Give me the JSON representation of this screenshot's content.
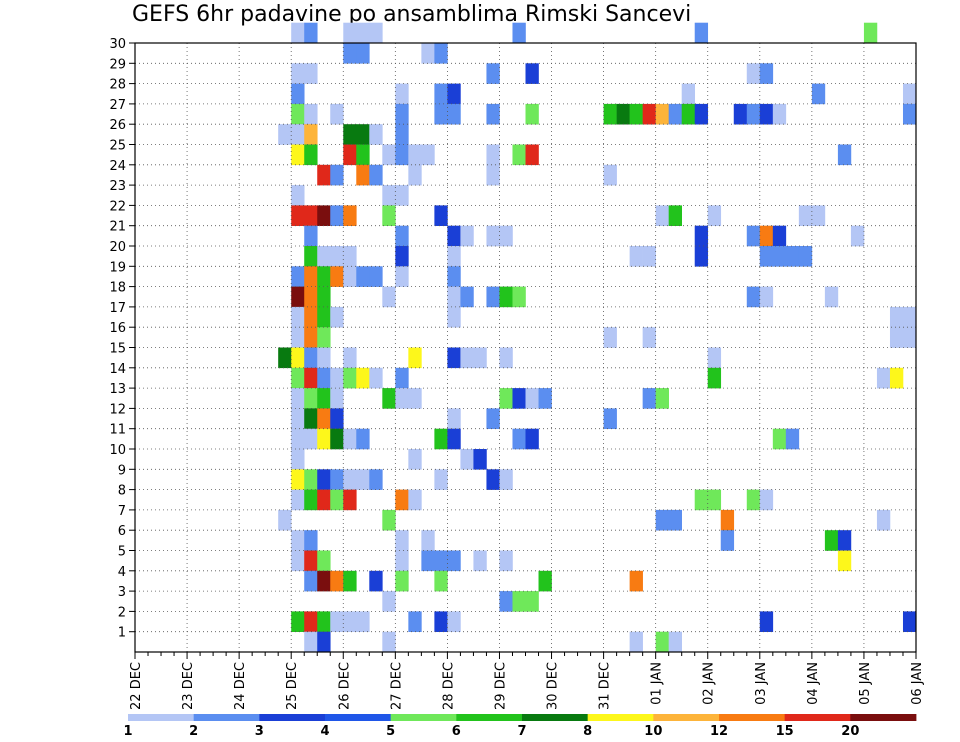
{
  "title": "GEFS 6hr padavine po ansamblima Rimski Sancevi",
  "chart_data": {
    "type": "heatmap",
    "title": "GEFS 6hr padavine po ansamblima Rimski Sancevi",
    "x_unit": "6hr steps from 22 DEC 00Z",
    "x_tick_labels": [
      "22 DEC",
      "23 DEC",
      "24 DEC",
      "25 DEC",
      "26 DEC",
      "27 DEC",
      "28 DEC",
      "29 DEC",
      "30 DEC",
      "31 DEC",
      "01 JAN",
      "02 JAN",
      "03 JAN",
      "04 JAN",
      "05 JAN",
      "06 JAN"
    ],
    "y_tick_labels": [
      "1",
      "2",
      "3",
      "4",
      "5",
      "6",
      "7",
      "8",
      "9",
      "10",
      "11",
      "12",
      "13",
      "14",
      "15",
      "16",
      "17",
      "18",
      "19",
      "20",
      "21",
      "22",
      "23",
      "24",
      "25",
      "26",
      "27",
      "28",
      "29",
      "30"
    ],
    "xlim": [
      0,
      60
    ],
    "ylim": [
      0,
      30
    ],
    "grid": true,
    "colorbar": {
      "levels": [
        "1",
        "2",
        "3",
        "4",
        "5",
        "6",
        "7",
        "8",
        "10",
        "12",
        "15",
        "20"
      ],
      "colors": [
        "#b4c6f5",
        "#5b8ef0",
        "#1a3fd6",
        "#1f56e8",
        "#6fe85a",
        "#22c31c",
        "#087a10",
        "#fdf71b",
        "#fdb43a",
        "#f87b12",
        "#e0281a",
        "#7a0e0e"
      ],
      "placement": "bottom"
    },
    "cells": [
      [
        12,
        30,
        1
      ],
      [
        13,
        30,
        2
      ],
      [
        16,
        30,
        1
      ],
      [
        17,
        30,
        1
      ],
      [
        18,
        30,
        1
      ],
      [
        29,
        30,
        2
      ],
      [
        43,
        30,
        2
      ],
      [
        56,
        30,
        5
      ],
      [
        16,
        29,
        2
      ],
      [
        17,
        29,
        2
      ],
      [
        22,
        29,
        1
      ],
      [
        23,
        29,
        2
      ],
      [
        12,
        28,
        1
      ],
      [
        13,
        28,
        1
      ],
      [
        27,
        28,
        2
      ],
      [
        30,
        28,
        3
      ],
      [
        47,
        28,
        1
      ],
      [
        48,
        28,
        2
      ],
      [
        12,
        27,
        2
      ],
      [
        20,
        27,
        1
      ],
      [
        23,
        27,
        2
      ],
      [
        24,
        27,
        3
      ],
      [
        42,
        27,
        1
      ],
      [
        52,
        27,
        2
      ],
      [
        59,
        27,
        1
      ],
      [
        12,
        26,
        5
      ],
      [
        13,
        26,
        1
      ],
      [
        15,
        26,
        1
      ],
      [
        20,
        26,
        2
      ],
      [
        23,
        26,
        2
      ],
      [
        24,
        26,
        2
      ],
      [
        27,
        26,
        2
      ],
      [
        30,
        26,
        5
      ],
      [
        36,
        26,
        6
      ],
      [
        37,
        26,
        7
      ],
      [
        38,
        26,
        6
      ],
      [
        39,
        26,
        11
      ],
      [
        40,
        26,
        9
      ],
      [
        41,
        26,
        2
      ],
      [
        42,
        26,
        6
      ],
      [
        43,
        26,
        3
      ],
      [
        46,
        26,
        3
      ],
      [
        47,
        26,
        2
      ],
      [
        48,
        26,
        3
      ],
      [
        49,
        26,
        1
      ],
      [
        59,
        26,
        2
      ],
      [
        11,
        25,
        1
      ],
      [
        12,
        25,
        1
      ],
      [
        13,
        25,
        9
      ],
      [
        16,
        25,
        7
      ],
      [
        17,
        25,
        7
      ],
      [
        18,
        25,
        1
      ],
      [
        20,
        25,
        2
      ],
      [
        12,
        24,
        8
      ],
      [
        13,
        24,
        6
      ],
      [
        16,
        24,
        11
      ],
      [
        17,
        24,
        6
      ],
      [
        19,
        24,
        1
      ],
      [
        20,
        24,
        2
      ],
      [
        21,
        24,
        1
      ],
      [
        22,
        24,
        1
      ],
      [
        27,
        24,
        1
      ],
      [
        29,
        24,
        5
      ],
      [
        30,
        24,
        11
      ],
      [
        54,
        24,
        2
      ],
      [
        14,
        23,
        11
      ],
      [
        15,
        23,
        2
      ],
      [
        17,
        23,
        10
      ],
      [
        18,
        23,
        2
      ],
      [
        21,
        23,
        1
      ],
      [
        27,
        23,
        1
      ],
      [
        36,
        23,
        1
      ],
      [
        12,
        22,
        1
      ],
      [
        19,
        22,
        1
      ],
      [
        20,
        22,
        1
      ],
      [
        12,
        21,
        11
      ],
      [
        13,
        21,
        11
      ],
      [
        14,
        21,
        12
      ],
      [
        15,
        21,
        2
      ],
      [
        16,
        21,
        10
      ],
      [
        19,
        21,
        5
      ],
      [
        23,
        21,
        3
      ],
      [
        40,
        21,
        1
      ],
      [
        41,
        21,
        6
      ],
      [
        44,
        21,
        1
      ],
      [
        51,
        21,
        1
      ],
      [
        52,
        21,
        1
      ],
      [
        13,
        20,
        2
      ],
      [
        20,
        20,
        2
      ],
      [
        24,
        20,
        3
      ],
      [
        25,
        20,
        1
      ],
      [
        27,
        20,
        1
      ],
      [
        28,
        20,
        1
      ],
      [
        43,
        20,
        3
      ],
      [
        47,
        20,
        2
      ],
      [
        48,
        20,
        10
      ],
      [
        49,
        20,
        3
      ],
      [
        55,
        20,
        1
      ],
      [
        13,
        19,
        6
      ],
      [
        14,
        19,
        1
      ],
      [
        15,
        19,
        1
      ],
      [
        16,
        19,
        1
      ],
      [
        20,
        19,
        3
      ],
      [
        24,
        19,
        1
      ],
      [
        38,
        19,
        1
      ],
      [
        39,
        19,
        1
      ],
      [
        43,
        19,
        3
      ],
      [
        48,
        19,
        2
      ],
      [
        49,
        19,
        2
      ],
      [
        50,
        19,
        2
      ],
      [
        51,
        19,
        2
      ],
      [
        12,
        18,
        2
      ],
      [
        13,
        18,
        10
      ],
      [
        14,
        18,
        6
      ],
      [
        15,
        18,
        10
      ],
      [
        16,
        18,
        1
      ],
      [
        17,
        18,
        2
      ],
      [
        18,
        18,
        2
      ],
      [
        20,
        18,
        1
      ],
      [
        24,
        18,
        2
      ],
      [
        12,
        17,
        12
      ],
      [
        13,
        17,
        10
      ],
      [
        14,
        17,
        6
      ],
      [
        19,
        17,
        1
      ],
      [
        24,
        17,
        1
      ],
      [
        25,
        17,
        2
      ],
      [
        27,
        17,
        2
      ],
      [
        28,
        17,
        6
      ],
      [
        29,
        17,
        5
      ],
      [
        47,
        17,
        2
      ],
      [
        48,
        17,
        1
      ],
      [
        53,
        17,
        1
      ],
      [
        12,
        16,
        1
      ],
      [
        13,
        16,
        10
      ],
      [
        14,
        16,
        6
      ],
      [
        15,
        16,
        1
      ],
      [
        24,
        16,
        1
      ],
      [
        58,
        16,
        1
      ],
      [
        59,
        16,
        1
      ],
      [
        12,
        15,
        1
      ],
      [
        13,
        15,
        10
      ],
      [
        14,
        15,
        5
      ],
      [
        36,
        15,
        1
      ],
      [
        39,
        15,
        1
      ],
      [
        58,
        15,
        1
      ],
      [
        59,
        15,
        1
      ],
      [
        11,
        14,
        7
      ],
      [
        12,
        14,
        8
      ],
      [
        13,
        14,
        2
      ],
      [
        14,
        14,
        1
      ],
      [
        16,
        14,
        1
      ],
      [
        21,
        14,
        8
      ],
      [
        24,
        14,
        3
      ],
      [
        25,
        14,
        1
      ],
      [
        26,
        14,
        1
      ],
      [
        28,
        14,
        1
      ],
      [
        44,
        14,
        1
      ],
      [
        12,
        13,
        5
      ],
      [
        13,
        13,
        11
      ],
      [
        14,
        13,
        2
      ],
      [
        15,
        13,
        1
      ],
      [
        16,
        13,
        5
      ],
      [
        17,
        13,
        8
      ],
      [
        18,
        13,
        1
      ],
      [
        20,
        13,
        2
      ],
      [
        44,
        13,
        6
      ],
      [
        57,
        13,
        1
      ],
      [
        58,
        13,
        8
      ],
      [
        12,
        12,
        1
      ],
      [
        13,
        12,
        5
      ],
      [
        14,
        12,
        6
      ],
      [
        15,
        12,
        1
      ],
      [
        19,
        12,
        6
      ],
      [
        20,
        12,
        1
      ],
      [
        21,
        12,
        1
      ],
      [
        28,
        12,
        5
      ],
      [
        29,
        12,
        3
      ],
      [
        30,
        12,
        1
      ],
      [
        31,
        12,
        2
      ],
      [
        39,
        12,
        2
      ],
      [
        40,
        12,
        5
      ],
      [
        12,
        11,
        1
      ],
      [
        13,
        11,
        7
      ],
      [
        14,
        11,
        10
      ],
      [
        15,
        11,
        3
      ],
      [
        24,
        11,
        1
      ],
      [
        27,
        11,
        2
      ],
      [
        36,
        11,
        2
      ],
      [
        12,
        10,
        1
      ],
      [
        13,
        10,
        1
      ],
      [
        14,
        10,
        8
      ],
      [
        15,
        10,
        7
      ],
      [
        16,
        10,
        1
      ],
      [
        17,
        10,
        2
      ],
      [
        23,
        10,
        6
      ],
      [
        24,
        10,
        3
      ],
      [
        29,
        10,
        2
      ],
      [
        30,
        10,
        3
      ],
      [
        49,
        10,
        5
      ],
      [
        50,
        10,
        2
      ],
      [
        12,
        9,
        1
      ],
      [
        21,
        9,
        1
      ],
      [
        25,
        9,
        1
      ],
      [
        26,
        9,
        3
      ],
      [
        12,
        8,
        8
      ],
      [
        13,
        8,
        5
      ],
      [
        14,
        8,
        3
      ],
      [
        15,
        8,
        2
      ],
      [
        16,
        8,
        1
      ],
      [
        17,
        8,
        1
      ],
      [
        18,
        8,
        2
      ],
      [
        23,
        8,
        1
      ],
      [
        27,
        8,
        3
      ],
      [
        28,
        8,
        1
      ],
      [
        12,
        7,
        1
      ],
      [
        13,
        7,
        6
      ],
      [
        14,
        7,
        11
      ],
      [
        15,
        7,
        5
      ],
      [
        16,
        7,
        11
      ],
      [
        20,
        7,
        10
      ],
      [
        21,
        7,
        1
      ],
      [
        43,
        7,
        5
      ],
      [
        44,
        7,
        5
      ],
      [
        47,
        7,
        5
      ],
      [
        48,
        7,
        1
      ],
      [
        11,
        6,
        1
      ],
      [
        19,
        6,
        5
      ],
      [
        40,
        6,
        2
      ],
      [
        41,
        6,
        2
      ],
      [
        45,
        6,
        10
      ],
      [
        57,
        6,
        1
      ],
      [
        12,
        5,
        1
      ],
      [
        13,
        5,
        2
      ],
      [
        20,
        5,
        1
      ],
      [
        22,
        5,
        1
      ],
      [
        45,
        5,
        2
      ],
      [
        53,
        5,
        6
      ],
      [
        54,
        5,
        3
      ],
      [
        12,
        4,
        1
      ],
      [
        13,
        4,
        11
      ],
      [
        14,
        4,
        5
      ],
      [
        20,
        4,
        1
      ],
      [
        22,
        4,
        2
      ],
      [
        23,
        4,
        2
      ],
      [
        24,
        4,
        2
      ],
      [
        26,
        4,
        1
      ],
      [
        28,
        4,
        1
      ],
      [
        54,
        4,
        8
      ],
      [
        13,
        3,
        2
      ],
      [
        14,
        3,
        12
      ],
      [
        15,
        3,
        10
      ],
      [
        16,
        3,
        6
      ],
      [
        18,
        3,
        3
      ],
      [
        20,
        3,
        5
      ],
      [
        23,
        3,
        5
      ],
      [
        31,
        3,
        6
      ],
      [
        38,
        3,
        10
      ],
      [
        19,
        2,
        1
      ],
      [
        28,
        2,
        2
      ],
      [
        29,
        2,
        5
      ],
      [
        30,
        2,
        5
      ],
      [
        12,
        1,
        6
      ],
      [
        13,
        1,
        11
      ],
      [
        14,
        1,
        6
      ],
      [
        15,
        1,
        1
      ],
      [
        16,
        1,
        1
      ],
      [
        17,
        1,
        1
      ],
      [
        21,
        1,
        2
      ],
      [
        23,
        1,
        3
      ],
      [
        24,
        1,
        1
      ],
      [
        48,
        1,
        3
      ],
      [
        59,
        1,
        3
      ],
      [
        13,
        0,
        1
      ],
      [
        14,
        0,
        3
      ],
      [
        19,
        0,
        1
      ],
      [
        38,
        0,
        1
      ],
      [
        40,
        0,
        5
      ],
      [
        41,
        0,
        1
      ]
    ]
  }
}
